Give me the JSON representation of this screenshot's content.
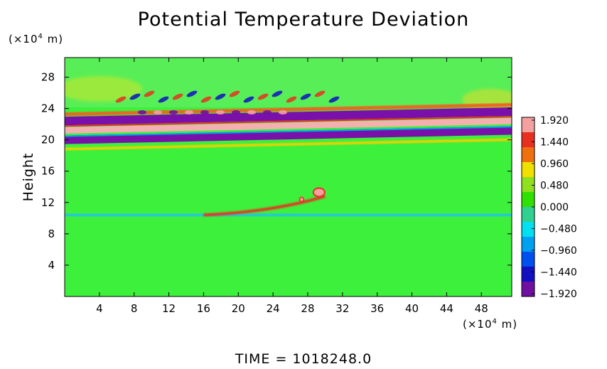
{
  "chart_data": {
    "type": "heatmap",
    "title": "Potential Temperature Deviation",
    "ylabel": "Height",
    "xlabel": "",
    "x_units": [
      "(×10",
      "4",
      " m)"
    ],
    "y_units": [
      "(×10",
      "4",
      " m)"
    ],
    "x_ticks": [
      4,
      8,
      12,
      16,
      20,
      24,
      28,
      32,
      36,
      40,
      44,
      48
    ],
    "y_ticks": [
      4,
      8,
      12,
      16,
      20,
      24,
      28
    ],
    "xlim": [
      0,
      51.5
    ],
    "ylim": [
      0,
      30.5
    ],
    "colorbar": {
      "ticks": [
        "1.920",
        "1.440",
        "0.960",
        "0.480",
        "0.000",
        "−0.480",
        "−0.960",
        "−1.440",
        "−1.920"
      ],
      "colors": [
        "#f4a0a0",
        "#e83020",
        "#f07010",
        "#f0e000",
        "#90e020",
        "#30e000",
        "#30d090",
        "#00e0f0",
        "#00a0f0",
        "#0050f0",
        "#1010c0",
        "#7010a0"
      ]
    },
    "fields": {
      "background": "#3cf03c",
      "upper_region": "#58ee58",
      "bands": [
        {
          "y": 23.0,
          "color": "#7a10aa"
        },
        {
          "y": 21.8,
          "color": "#f4b0b0"
        },
        {
          "y": 20.6,
          "color": "#7a10aa"
        }
      ],
      "lower_shear_layer": {
        "y": 10.4,
        "x_range": [
          16,
          30
        ]
      }
    }
  },
  "footer": "TIME  =  1018248.0"
}
